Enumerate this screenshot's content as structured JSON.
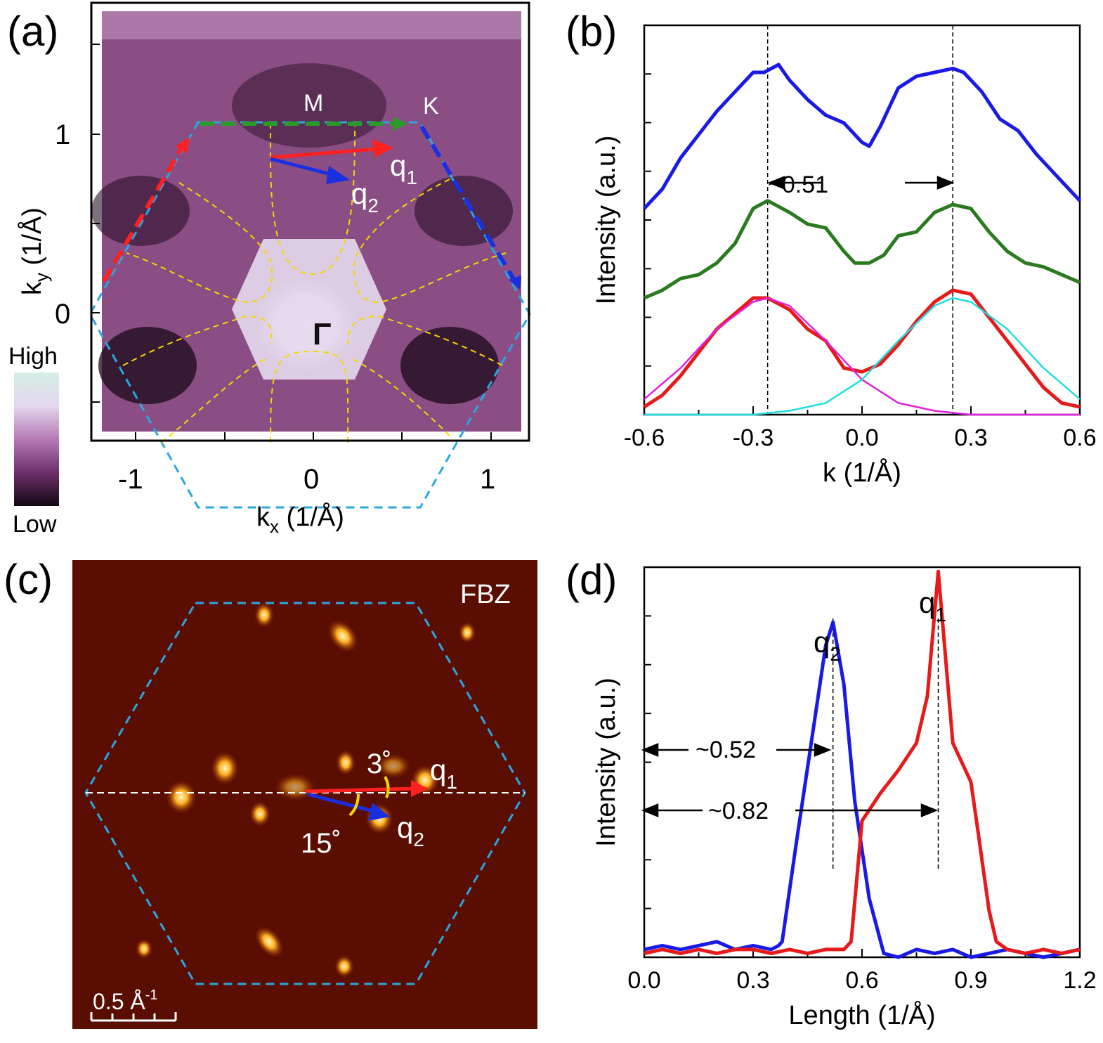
{
  "panels": {
    "a": {
      "label": "(a)",
      "xlabel_main": "k",
      "xlabel_sub": "x",
      "xlabel_unit": " (1/Å)",
      "ylabel_main": "k",
      "ylabel_sub": "y",
      "ylabel_unit": " (1/Å)",
      "x_ticks": [
        "-1",
        "0",
        "1"
      ],
      "y_ticks": [
        "1",
        "0"
      ],
      "colorbar_high": "High",
      "colorbar_low": "Low",
      "label_M": "M",
      "label_K": "K",
      "label_gamma": "Γ",
      "label_q1": "q",
      "label_q1_sub": "1",
      "label_q2": "q",
      "label_q2_sub": "2",
      "colors": {
        "bz": "#29a8e0",
        "contour": "#f5d800",
        "arrow_red": "#ff2020",
        "arrow_blue": "#1a2fe0",
        "arrow_green": "#2a9a2a"
      }
    },
    "b": {
      "label": "(b)",
      "annotation": "~0.51"
    },
    "c": {
      "label": "(c)",
      "tag": "FBZ",
      "angle1": "3˚",
      "angle2": "15˚",
      "label_q1": "q",
      "label_q1_sub": "1",
      "label_q2": "q",
      "label_q2_sub": "2",
      "scalebar": "0.5 Å",
      "scalebar_sup": "-1"
    },
    "d": {
      "label": "(d)",
      "annotation1": "~0.52",
      "annotation2": "~0.82",
      "label_q1": "q",
      "label_q1_sub": "1",
      "label_q2": "q",
      "label_q2_sub": "2"
    }
  },
  "chart_data": [
    {
      "panel": "b",
      "type": "line",
      "xlabel": "k (1/Å)",
      "ylabel": "Intensity (a.u.)",
      "xlim": [
        -0.6,
        0.6
      ],
      "x_ticks": [
        "-0.6",
        "-0.3",
        "0.0",
        "0.3",
        "0.6"
      ],
      "ylim": [
        0,
        1
      ],
      "vlines": [
        -0.26,
        0.25
      ],
      "series": [
        {
          "color": "#1a1ae6",
          "x": [
            -0.6,
            -0.55,
            -0.5,
            -0.45,
            -0.4,
            -0.35,
            -0.3,
            -0.27,
            -0.23,
            -0.2,
            -0.15,
            -0.1,
            -0.05,
            0.0,
            0.02,
            0.05,
            0.1,
            0.15,
            0.2,
            0.25,
            0.28,
            0.33,
            0.38,
            0.43,
            0.48,
            0.53,
            0.6
          ],
          "y": [
            0.53,
            0.58,
            0.66,
            0.72,
            0.78,
            0.83,
            0.88,
            0.88,
            0.9,
            0.86,
            0.81,
            0.77,
            0.75,
            0.7,
            0.69,
            0.74,
            0.84,
            0.87,
            0.88,
            0.89,
            0.88,
            0.83,
            0.76,
            0.73,
            0.67,
            0.62,
            0.55
          ]
        },
        {
          "color": "#2a7a1f",
          "x": [
            -0.6,
            -0.55,
            -0.5,
            -0.45,
            -0.4,
            -0.35,
            -0.3,
            -0.26,
            -0.2,
            -0.15,
            -0.1,
            -0.05,
            -0.02,
            0.02,
            0.06,
            0.1,
            0.15,
            0.2,
            0.25,
            0.3,
            0.35,
            0.4,
            0.45,
            0.5,
            0.55,
            0.6
          ],
          "y": [
            0.3,
            0.32,
            0.35,
            0.36,
            0.39,
            0.44,
            0.53,
            0.55,
            0.52,
            0.49,
            0.48,
            0.42,
            0.39,
            0.39,
            0.41,
            0.46,
            0.47,
            0.52,
            0.54,
            0.53,
            0.47,
            0.42,
            0.39,
            0.38,
            0.36,
            0.34
          ]
        },
        {
          "color": "#e61a1a",
          "x": [
            -0.6,
            -0.55,
            -0.5,
            -0.45,
            -0.4,
            -0.35,
            -0.3,
            -0.26,
            -0.2,
            -0.15,
            -0.1,
            -0.05,
            0.0,
            0.05,
            0.1,
            0.15,
            0.2,
            0.25,
            0.3,
            0.35,
            0.4,
            0.45,
            0.5,
            0.55,
            0.6
          ],
          "y": [
            0.02,
            0.05,
            0.1,
            0.16,
            0.22,
            0.26,
            0.3,
            0.3,
            0.27,
            0.22,
            0.19,
            0.12,
            0.11,
            0.13,
            0.18,
            0.24,
            0.29,
            0.32,
            0.31,
            0.25,
            0.19,
            0.13,
            0.07,
            0.03,
            0.02
          ]
        },
        {
          "color": "#e020e0",
          "x": [
            -0.6,
            -0.5,
            -0.4,
            -0.3,
            -0.26,
            -0.2,
            -0.1,
            0.0,
            0.1,
            0.2,
            0.3,
            0.4,
            0.5,
            0.6
          ],
          "y": [
            0.04,
            0.12,
            0.22,
            0.29,
            0.3,
            0.28,
            0.19,
            0.09,
            0.03,
            0.01,
            0.0,
            0.0,
            0.0,
            0.0
          ]
        },
        {
          "color": "#20dde0",
          "x": [
            -0.6,
            -0.5,
            -0.4,
            -0.3,
            -0.2,
            -0.1,
            0.0,
            0.1,
            0.2,
            0.25,
            0.3,
            0.4,
            0.5,
            0.6
          ],
          "y": [
            0.0,
            0.0,
            0.0,
            0.0,
            0.01,
            0.03,
            0.09,
            0.19,
            0.28,
            0.3,
            0.29,
            0.22,
            0.12,
            0.04
          ]
        }
      ]
    },
    {
      "panel": "d",
      "type": "line",
      "xlabel": "Length (1/Å)",
      "ylabel": "Intensity (a.u.)",
      "xlim": [
        0.0,
        1.2
      ],
      "x_ticks": [
        "0.0",
        "0.3",
        "0.6",
        "0.9",
        "1.2"
      ],
      "ylim": [
        0,
        1
      ],
      "vlines": [
        0.52,
        0.81
      ],
      "series": [
        {
          "color": "#1a1ae6",
          "x": [
            0.0,
            0.05,
            0.1,
            0.15,
            0.2,
            0.25,
            0.3,
            0.35,
            0.37,
            0.38,
            0.42,
            0.46,
            0.5,
            0.52,
            0.55,
            0.58,
            0.62,
            0.66,
            0.7,
            0.75,
            0.8,
            0.85,
            0.9,
            0.95,
            1.0,
            1.05,
            1.1,
            1.15,
            1.2
          ],
          "y": [
            0.02,
            0.03,
            0.02,
            0.03,
            0.04,
            0.02,
            0.03,
            0.02,
            0.03,
            0.04,
            0.3,
            0.55,
            0.8,
            0.86,
            0.7,
            0.4,
            0.15,
            0.01,
            0.0,
            0.02,
            0.01,
            0.02,
            0.0,
            0.01,
            0.02,
            0.01,
            0.0,
            0.01,
            0.02
          ]
        },
        {
          "color": "#e61a1a",
          "x": [
            0.0,
            0.05,
            0.1,
            0.15,
            0.2,
            0.25,
            0.3,
            0.35,
            0.4,
            0.45,
            0.5,
            0.55,
            0.57,
            0.6,
            0.65,
            0.7,
            0.75,
            0.78,
            0.81,
            0.85,
            0.9,
            0.92,
            0.95,
            0.97,
            1.0,
            1.05,
            1.1,
            1.15,
            1.2
          ],
          "y": [
            0.01,
            0.02,
            0.01,
            0.02,
            0.01,
            0.02,
            0.02,
            0.01,
            0.02,
            0.01,
            0.02,
            0.02,
            0.04,
            0.35,
            0.42,
            0.48,
            0.55,
            0.67,
            0.99,
            0.55,
            0.45,
            0.32,
            0.12,
            0.04,
            0.02,
            0.01,
            0.02,
            0.01,
            0.02
          ]
        }
      ]
    }
  ]
}
